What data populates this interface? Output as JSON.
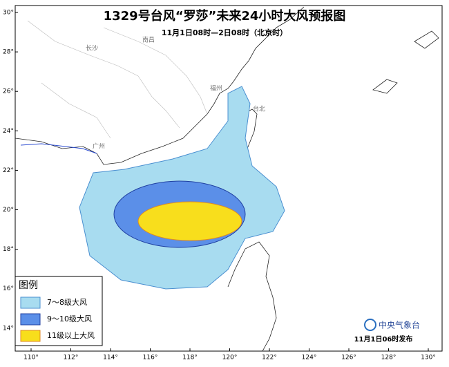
{
  "header": {
    "title": "1329号台风“罗莎”未来24小时大风预报图",
    "subtitle": "11月1日08时—2日08时（北京时）"
  },
  "map": {
    "lon_labels": [
      "110°",
      "112°",
      "114°",
      "116°",
      "118°",
      "120°",
      "122°",
      "124°",
      "126°",
      "128°",
      "130°"
    ],
    "lat_labels": [
      "30°",
      "28°",
      "26°",
      "24°",
      "22°",
      "20°",
      "18°",
      "16°",
      "14°"
    ],
    "cities": [
      "长沙",
      "南昌",
      "福州",
      "台北",
      "广州"
    ]
  },
  "legend": {
    "title": "图例",
    "items": [
      "7～8级大风",
      "9～10级大风",
      "11级以上大风"
    ]
  },
  "footer": {
    "agency": "中央气象台",
    "issued": "11月1日06时发布"
  }
}
